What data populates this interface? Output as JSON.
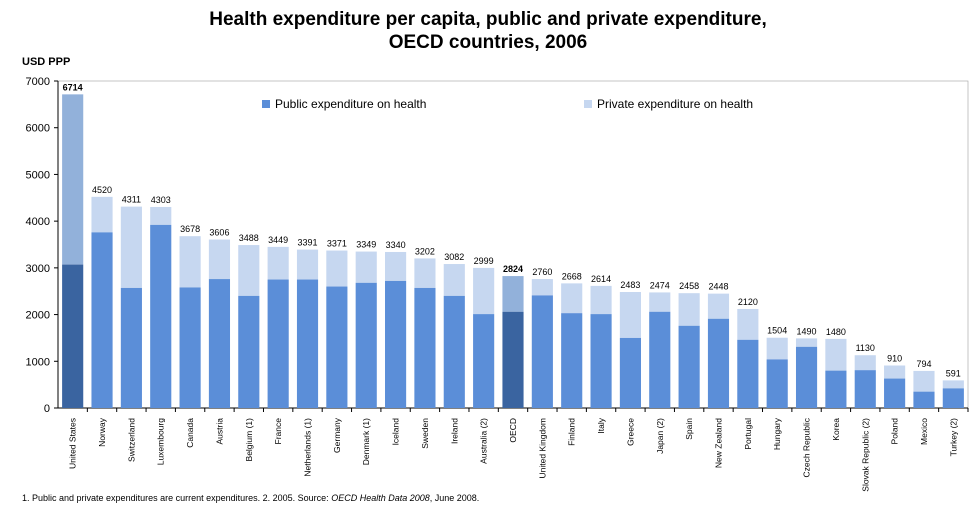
{
  "header": {
    "title_line1": "Health expenditure per capita, public and private expenditure,",
    "title_line2": "OECD countries, 2006"
  },
  "footnote": {
    "part1": "1. Public and private expenditures  are current expenditures.    2. 2005.    Source: ",
    "source_name": "OECD Health Data 2008",
    "part2": ", June 2008."
  },
  "colors": {
    "public": "#5B8ED8",
    "private": "#C6D7F0",
    "public_highlight": "#3A64A0",
    "private_highlight": "#92B1DA",
    "axis": "#000000"
  },
  "chart_data": {
    "type": "bar",
    "stacked": true,
    "title": "Health expenditure per capita, public and private expenditure, OECD countries, 2006",
    "ylabel": "USD PPP",
    "ylim": [
      0,
      7000
    ],
    "yticks": [
      0,
      1000,
      2000,
      3000,
      4000,
      5000,
      6000,
      7000
    ],
    "legend_position": "top",
    "categories": [
      "United States",
      "Norway",
      "Switzerland",
      "Luxembourg",
      "Canada",
      "Austria",
      "Belgium (1)",
      "France",
      "Netherlands (1)",
      "Germany",
      "Denmark (1)",
      "Iceland",
      "Sweden",
      "Ireland",
      "Australia (2)",
      "OECD",
      "United Kingdom",
      "Finland",
      "Italy",
      "Greece",
      "Japan (2)",
      "Spain",
      "New Zealand",
      "Portugal",
      "Hungary",
      "Czech Republic",
      "Korea",
      "Slovak Republic (2)",
      "Poland",
      "Mexico",
      "Turkey (2)"
    ],
    "totals": [
      6714,
      4520,
      4311,
      4303,
      3678,
      3606,
      3488,
      3449,
      3391,
      3371,
      3349,
      3340,
      3202,
      3082,
      2999,
      2824,
      2760,
      2668,
      2614,
      2483,
      2474,
      2458,
      2448,
      2120,
      1504,
      1490,
      1480,
      1130,
      910,
      794,
      591
    ],
    "highlight_categories": [
      "United States",
      "OECD"
    ],
    "series": [
      {
        "name": "Public expenditure on health",
        "values": [
          3070,
          3760,
          2570,
          3920,
          2580,
          2760,
          2400,
          2750,
          2750,
          2600,
          2680,
          2720,
          2570,
          2400,
          2010,
          2060,
          2410,
          2030,
          2010,
          1500,
          2060,
          1760,
          1910,
          1460,
          1040,
          1310,
          800,
          810,
          630,
          350,
          420
        ]
      },
      {
        "name": "Private expenditure on health",
        "values": [
          3644,
          760,
          1741,
          383,
          1098,
          846,
          1088,
          699,
          641,
          771,
          669,
          620,
          632,
          682,
          989,
          764,
          350,
          638,
          604,
          983,
          414,
          698,
          538,
          660,
          464,
          180,
          680,
          320,
          280,
          444,
          171
        ]
      }
    ]
  }
}
